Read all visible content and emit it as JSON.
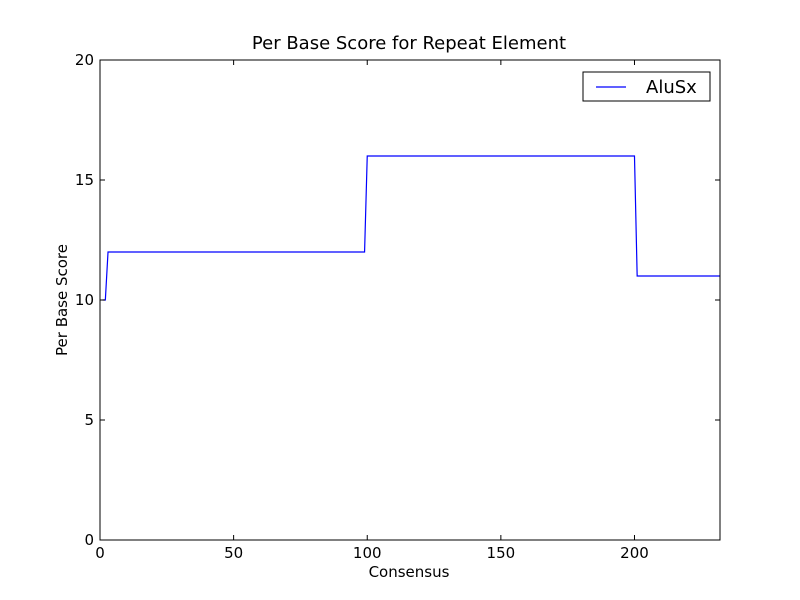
{
  "chart_data": {
    "type": "line",
    "title": "Per Base Score for Repeat Element",
    "xlabel": "Consensus",
    "ylabel": "Per Base Score",
    "xlim": [
      0,
      232
    ],
    "ylim": [
      0,
      20
    ],
    "xticks": [
      0,
      50,
      100,
      150,
      200
    ],
    "yticks": [
      0,
      5,
      10,
      15,
      20
    ],
    "grid": false,
    "legend": {
      "position": "top-right"
    },
    "series": [
      {
        "name": "AluSx",
        "color": "#0000ff",
        "x": [
          1,
          2,
          3,
          99,
          100,
          200,
          201,
          232
        ],
        "y": [
          10,
          10,
          12,
          12,
          16,
          16,
          11,
          11
        ]
      }
    ]
  }
}
